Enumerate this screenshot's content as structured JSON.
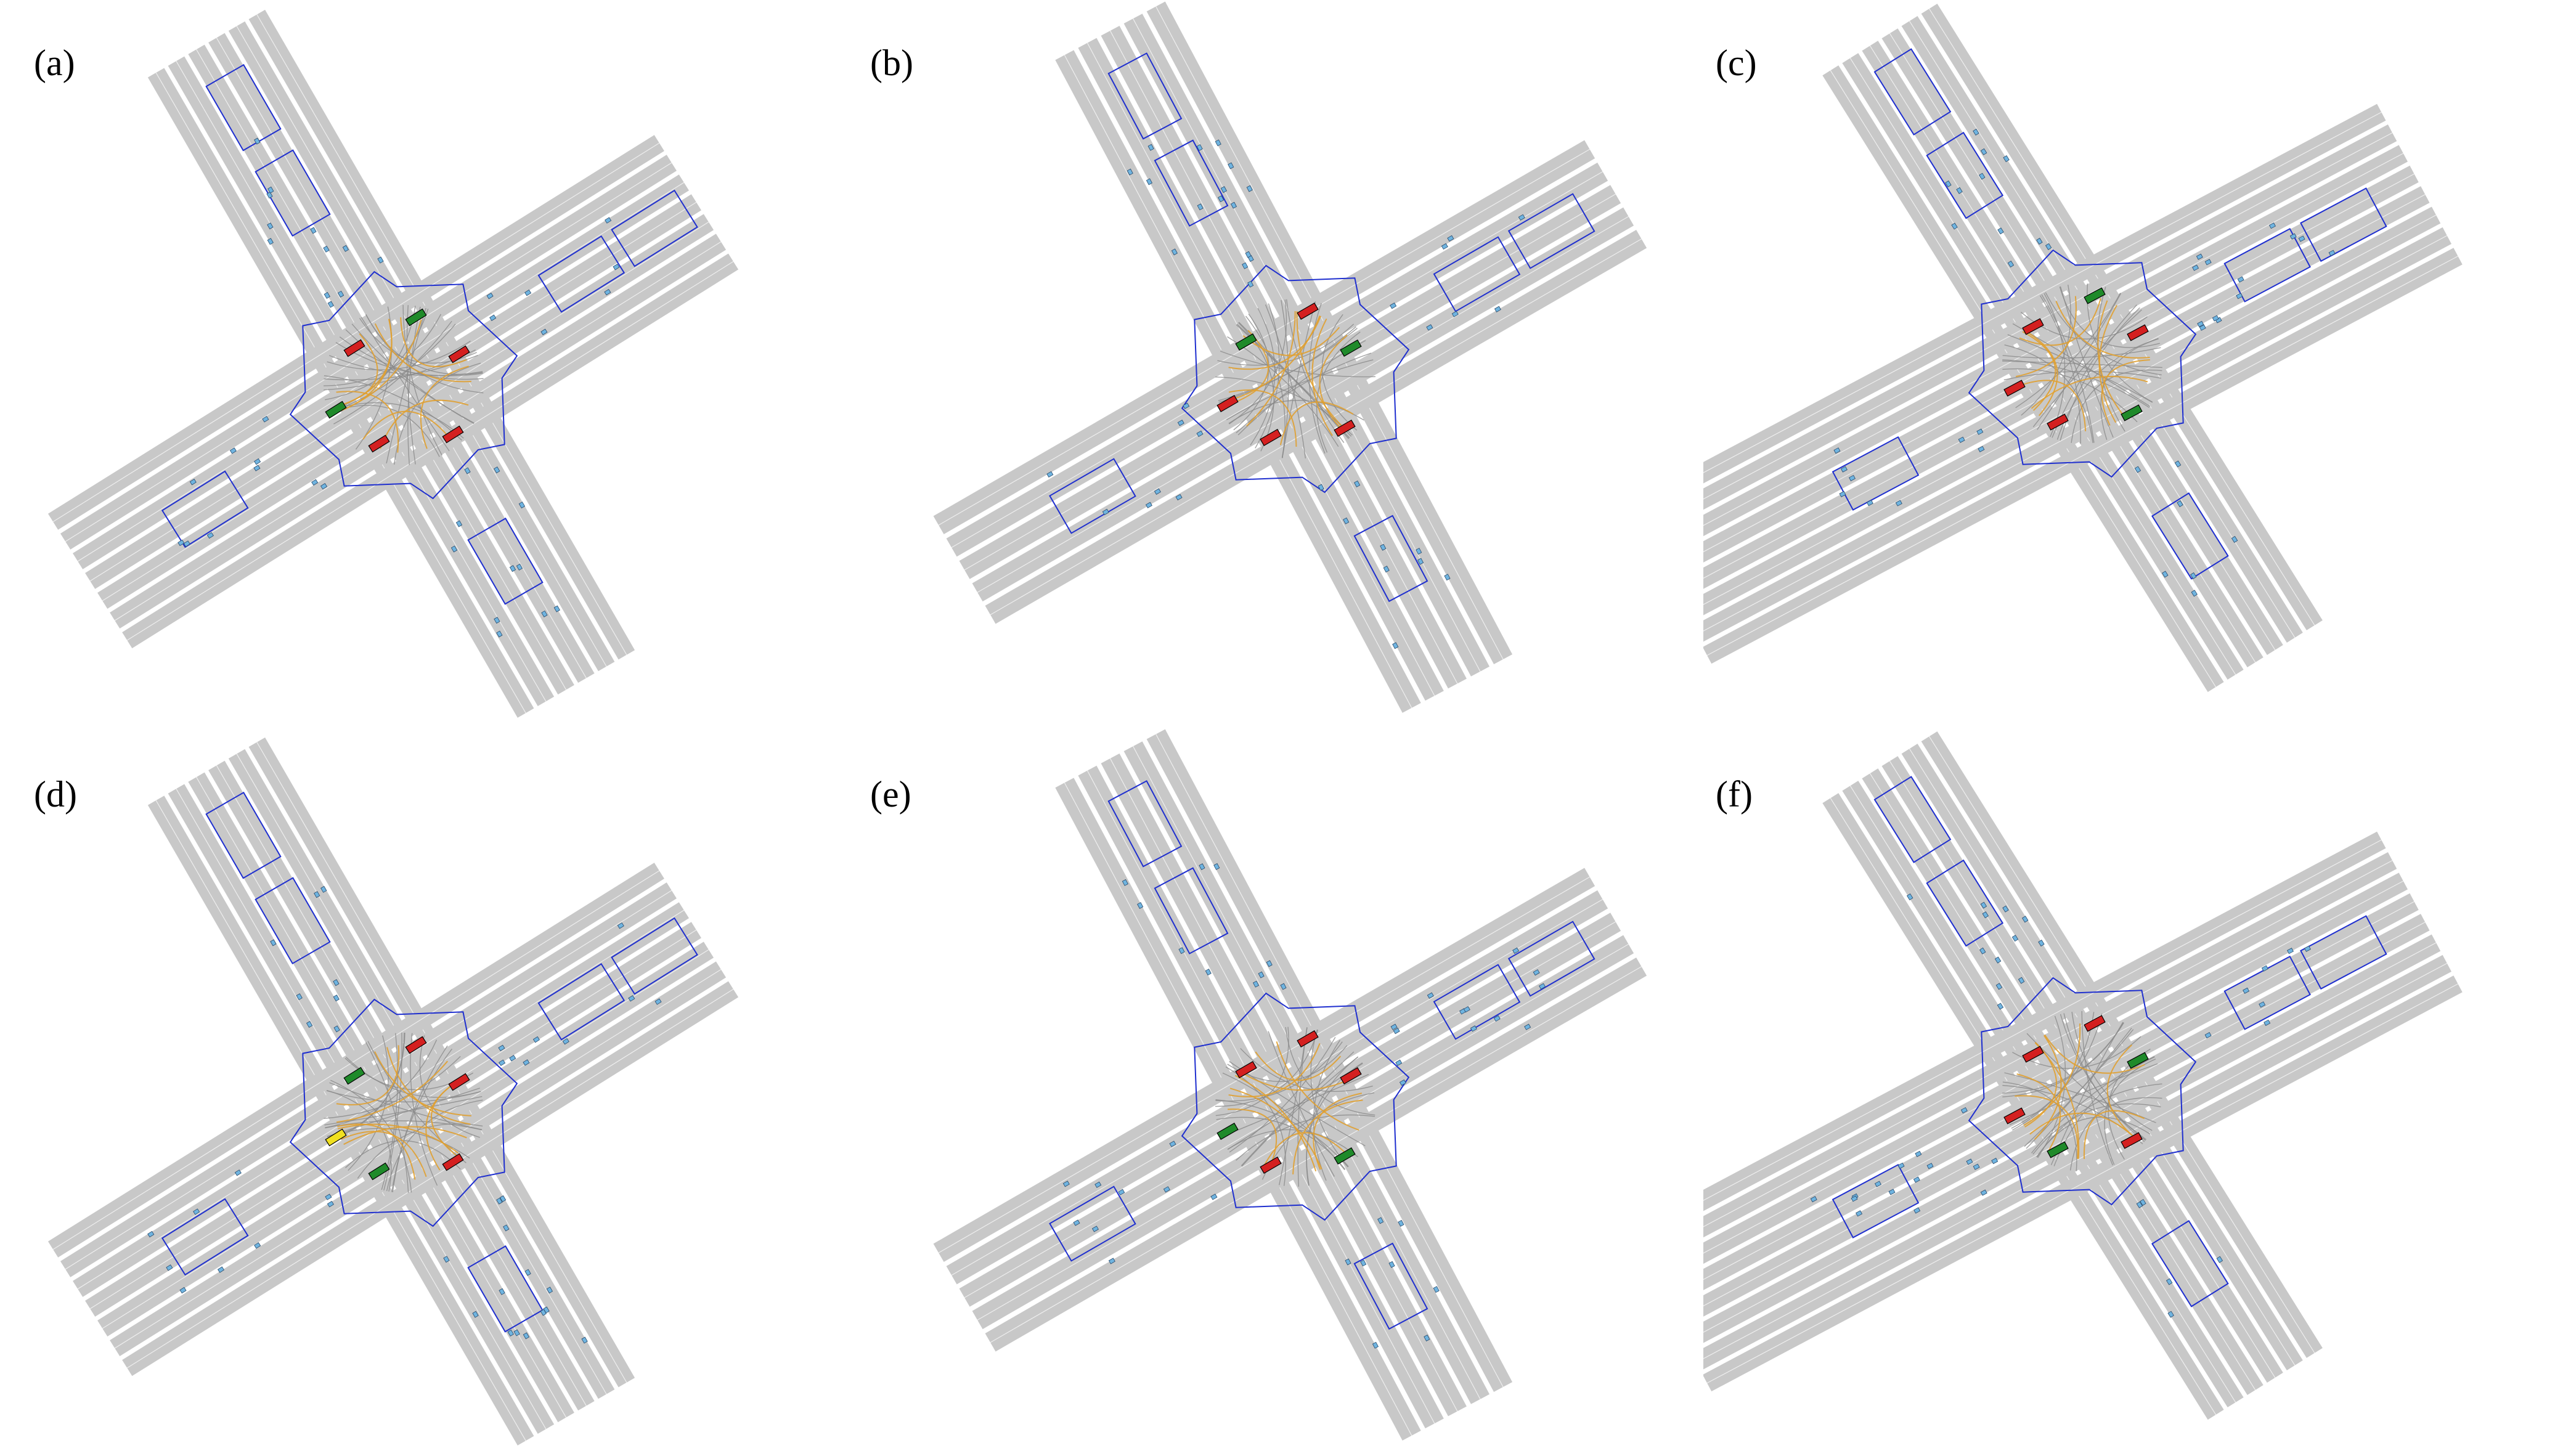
{
  "figure": {
    "panels": [
      {
        "label": "(a)",
        "variant": "a"
      },
      {
        "label": "(b)",
        "variant": "b"
      },
      {
        "label": "(c)",
        "variant": "c"
      },
      {
        "label": "(d)",
        "variant": "a"
      },
      {
        "label": "(e)",
        "variant": "b"
      },
      {
        "label": "(f)",
        "variant": "c"
      }
    ]
  },
  "colors": {
    "lane_fill": "#c8c8c8",
    "lane_center": "#ffffff",
    "boundary": "#1f2fcf",
    "crosswalk": "#e0a030",
    "traffic_red": "#d42020",
    "traffic_green": "#1f8a2a",
    "traffic_yellow": "#f0e020",
    "agent_dot": "#6fb4e0"
  },
  "legend_icons": [
    "lane-polygon",
    "boundary-outline",
    "crosswalk-line",
    "traffic-light",
    "agent-marker"
  ]
}
